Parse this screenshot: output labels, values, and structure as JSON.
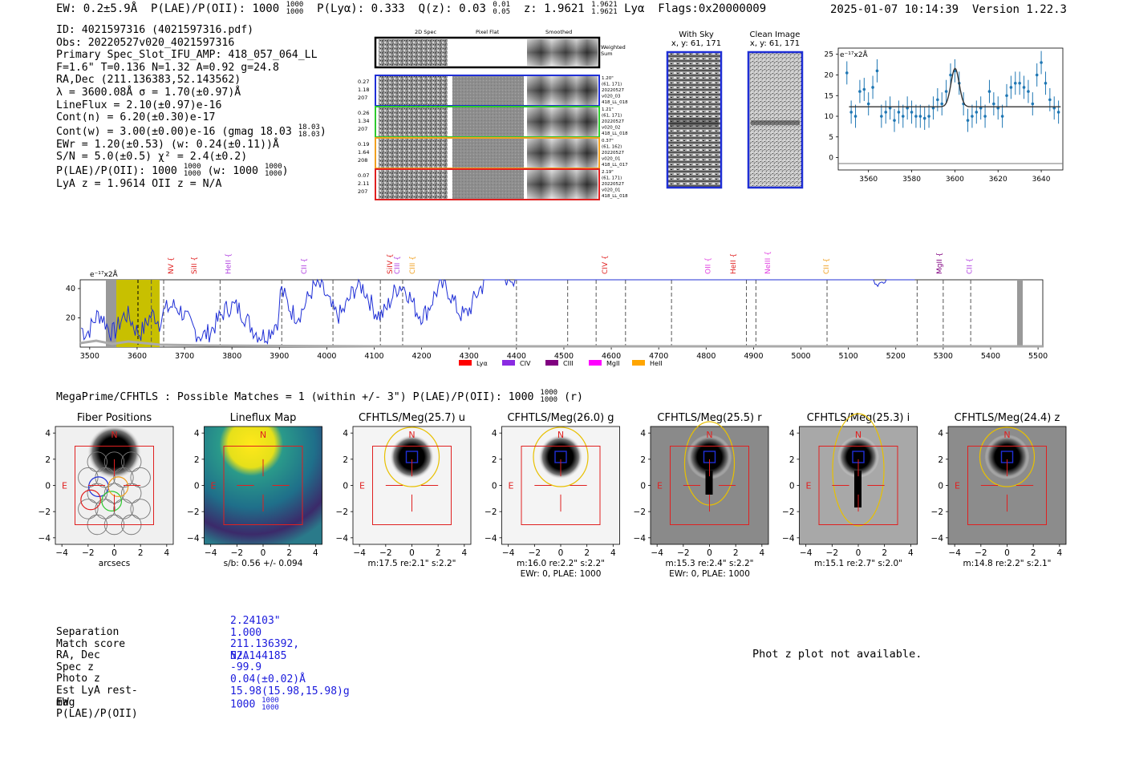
{
  "header": {
    "ew": "EW: 0.2±5.9Å",
    "plae_label": "P(LAE)/P(OII): 1000",
    "plae_hi": "1000",
    "plae_lo": "1000",
    "plya": "P(Lyα): 0.333",
    "qz_label": "Q(z): 0.03",
    "qz_hi": "0.01",
    "qz_lo": "0.05",
    "z_label": "z: 1.9621",
    "z_hi": "1.9621",
    "z_lo": "1.9621",
    "z_line": "Lyα",
    "flags": "Flags:0x20000009",
    "datetime": "2025-01-07 10:14:39",
    "version": "Version 1.22.3"
  },
  "info": {
    "id": "ID: 4021597316 (4021597316.pdf)",
    "obs": "Obs: 20220527v020_4021597316",
    "primary": "Primary Spec_Slot_IFU_AMP: 418_057_064_LL",
    "fiber": "F=1.6\"  T=0.136  N=1.32  A=0.92  g=24.8",
    "radec": "RA,Dec (211.136383,52.143562)",
    "lambda": "λ = 3600.08Å  σ = 1.70(±0.97)Å",
    "lineflux": "LineFlux = 2.10(±0.97)e-16",
    "contn": "Cont(n) = 6.20(±0.30)e-17",
    "contw": "Cont(w) = 3.00(±0.00)e-16 (gmag 18.03",
    "contw_hi": "18.03",
    "contw_lo": "18.03",
    "contw_end": ")",
    "ewr": "EWr = 1.20(±0.53) (w: 0.24(±0.11))Å",
    "sn": "S/N = 5.0(±0.5)  χ² = 2.4(±0.2)",
    "plae": "P(LAE)/P(OII): 1000",
    "plae_hi": "1000",
    "plae_lo": "1000",
    "plae_w": "(w: 1000",
    "plae_w_hi": "1000",
    "plae_w_lo": "1000",
    "plae_w_end": ")",
    "lyaz": "LyA z = 1.9614   OII z = N/A"
  },
  "spec2d": {
    "col_2d": "2D Spec",
    "col_flat": "Pixel Flat",
    "col_smooth": "Smoothed",
    "weighted": [
      "Weighted",
      "Sum"
    ],
    "rows": [
      {
        "left": [
          "0.27",
          "1.18",
          "207"
        ],
        "right": [
          "1.20\"",
          "(61, 171)",
          "20220527",
          "v020_03",
          "418_LL_018"
        ],
        "color": "#1f2fd6"
      },
      {
        "left": [
          "0.26",
          "1.34",
          "207"
        ],
        "right": [
          "1.21\"",
          "(61, 171)",
          "20220527",
          "v020_02",
          "418_LL_018"
        ],
        "color": "#2ec82e"
      },
      {
        "left": [
          "0.19",
          "1.64",
          "208"
        ],
        "right": [
          "0.37\"",
          "(61, 162)",
          "20220527",
          "v020_01",
          "418_LL_017"
        ],
        "color": "#f0a020"
      },
      {
        "left": [
          "0.07",
          "2.11",
          "207"
        ],
        "right": [
          "2.19\"",
          "(61, 171)",
          "20220527",
          "v020_01",
          "418_LL_018"
        ],
        "color": "#e02020"
      }
    ]
  },
  "cutouts": {
    "with_sky": {
      "title": "With Sky",
      "coords": "x, y: 61, 171"
    },
    "clean": {
      "title": "Clean Image",
      "coords": "x, y: 61, 171"
    }
  },
  "line_fit": {
    "unit": "e⁻¹⁷x2Å",
    "xticks": [
      "3560",
      "3580",
      "3600",
      "3620",
      "3640"
    ],
    "yticks": [
      "0",
      "5",
      "10",
      "15",
      "20",
      "25"
    ]
  },
  "full_spec": {
    "unit": "e⁻¹⁷x2Å",
    "yticks": [
      "20",
      "40"
    ],
    "xticks": [
      "3500",
      "3600",
      "3700",
      "3800",
      "3900",
      "4000",
      "4100",
      "4200",
      "4300",
      "4400",
      "4500",
      "4600",
      "4700",
      "4800",
      "4900",
      "5000",
      "5100",
      "5200",
      "5300",
      "5400",
      "5500"
    ],
    "lines": [
      {
        "label": "NV",
        "color": "#e02020"
      },
      {
        "label": "SiII",
        "color": "#e02020"
      },
      {
        "label": "HeII",
        "color": "#b040e0"
      },
      {
        "label": "SiIV",
        "color": "#e02020"
      },
      {
        "label": "CIII",
        "color": "#f0a020"
      },
      {
        "label": "CII",
        "color": "#b040e0"
      },
      {
        "label": "CIII",
        "color": "#b040e0"
      },
      {
        "label": "CIV",
        "color": "#e02020"
      },
      {
        "label": "OII",
        "color": "#e040e0"
      },
      {
        "label": "HeII",
        "color": "#e02020"
      },
      {
        "label": "NeIII",
        "color": "#e040e0"
      },
      {
        "label": "CII",
        "color": "#f0a020"
      },
      {
        "label": "MgII",
        "color": "#800080"
      },
      {
        "label": "CII",
        "color": "#b040e0"
      }
    ],
    "legend": [
      {
        "label": "Lyα",
        "color": "#ff0000"
      },
      {
        "label": "CIV",
        "color": "#8a2be2"
      },
      {
        "label": "CIII",
        "color": "#800080"
      },
      {
        "label": "MgII",
        "color": "#ff00ff"
      },
      {
        "label": "HeII",
        "color": "#ffa500"
      }
    ]
  },
  "matches": {
    "title": "MegaPrime/CFHTLS : Possible Matches = 1 (within +/- 3\")  P(LAE)/P(OII): 1000",
    "title_hi": "1000",
    "title_lo": "1000",
    "title_end": "(r)"
  },
  "panels": [
    {
      "title": "Fiber Positions",
      "sub1": "arcsecs",
      "sub2": ""
    },
    {
      "title": "Lineflux Map",
      "sub1": "s/b: 0.56 +/- 0.094",
      "sub2": ""
    },
    {
      "title": "CFHTLS/Meg(25.7) u",
      "sub1": "m:17.5  re:2.1\"  s:2.2\"",
      "sub2": ""
    },
    {
      "title": "CFHTLS/Meg(26.0) g",
      "sub1": "m:16.0  re:2.2\"  s:2.2\"",
      "sub2": "EWr: 0, PLAE: 1000"
    },
    {
      "title": "CFHTLS/Meg(25.5) r",
      "sub1": "m:15.3  re:2.4\"  s:2.2\"",
      "sub2": "EWr: 0, PLAE: 1000"
    },
    {
      "title": "CFHTLS/Meg(25.3) i",
      "sub1": "m:15.1  re:2.7\"  s:2.0\"",
      "sub2": ""
    },
    {
      "title": "CFHTLS/Meg(24.4) z",
      "sub1": "m:14.8  re:2.2\"  s:2.1\"",
      "sub2": ""
    }
  ],
  "panel_ticks": {
    "x": [
      "−4",
      "−2",
      "0",
      "2",
      "4"
    ],
    "y": [
      "4",
      "2",
      "0",
      "−2",
      "−4"
    ],
    "north": "N",
    "east": "E"
  },
  "match_table": {
    "rows": [
      {
        "label": "Separation",
        "value": "2.24103\""
      },
      {
        "label": "Match score",
        "value": "1.000"
      },
      {
        "label": "RA, Dec",
        "value": "211.136392, 52.144185"
      },
      {
        "label": "Spec z",
        "value": "N/A"
      },
      {
        "label": "Photo z",
        "value": "-99.9"
      },
      {
        "label": "Est LyA rest-EW",
        "value": "0.04(±0.02)Å"
      },
      {
        "label": "mag",
        "value": "15.98(15.98,15.98)g"
      },
      {
        "label": "P(LAE)/P(OII)",
        "value": "1000"
      }
    ],
    "plae_hi": "1000",
    "plae_lo": "1000"
  },
  "phot_z": "Phot z plot not available."
}
